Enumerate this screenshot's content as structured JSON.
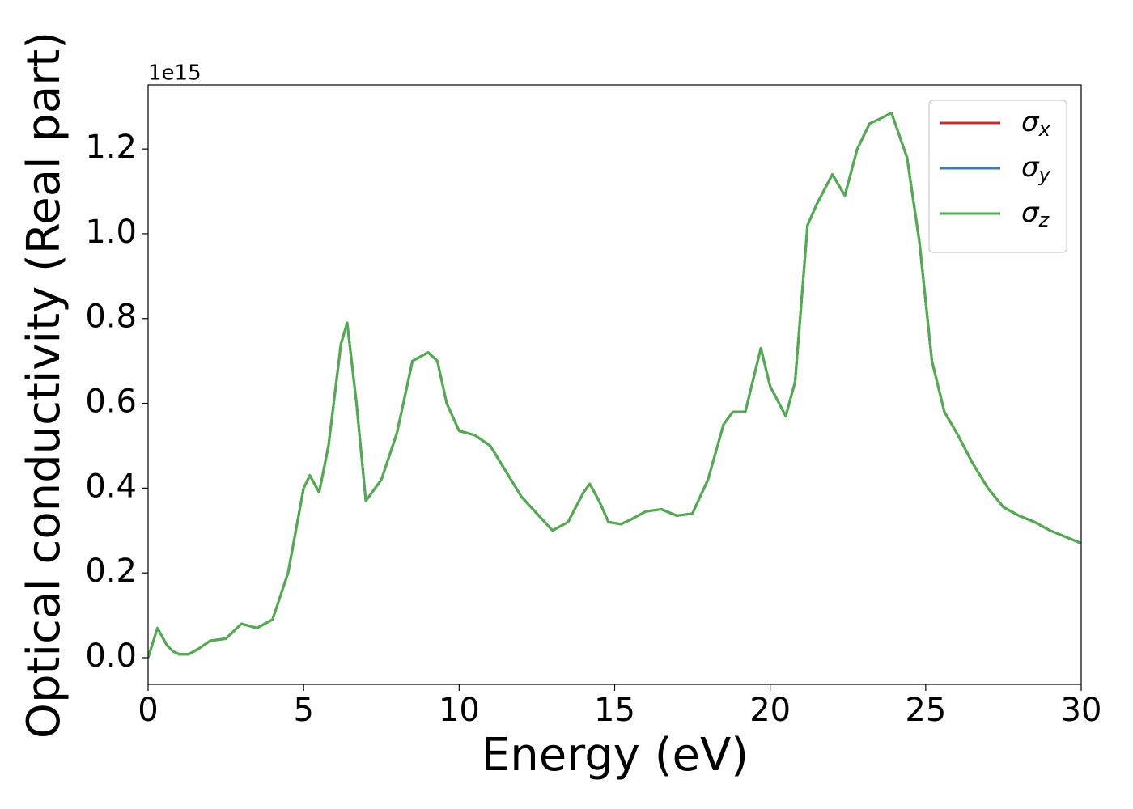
{
  "chart_data": {
    "type": "line",
    "xlabel": "Energy (eV)",
    "ylabel": "Optical conductivity (Real part)",
    "y_offset_label": "1e15",
    "x": [
      0,
      0.3,
      0.6,
      0.8,
      1.0,
      1.3,
      1.6,
      2.0,
      2.5,
      3.0,
      3.5,
      4.0,
      4.5,
      5.0,
      5.2,
      5.5,
      5.8,
      6.2,
      6.4,
      6.7,
      7.0,
      7.5,
      8.0,
      8.5,
      9.0,
      9.3,
      9.6,
      10.0,
      10.5,
      11.0,
      11.5,
      12.0,
      12.5,
      13.0,
      13.5,
      14.0,
      14.2,
      14.5,
      14.8,
      15.2,
      15.5,
      16.0,
      16.5,
      17.0,
      17.5,
      18.0,
      18.5,
      18.8,
      19.2,
      19.7,
      20.0,
      20.5,
      20.8,
      21.2,
      21.5,
      22.0,
      22.4,
      22.8,
      23.2,
      23.5,
      23.9,
      24.4,
      24.8,
      25.2,
      25.6,
      26.0,
      26.5,
      27.0,
      27.5,
      28.0,
      28.5,
      29.0,
      29.5,
      30.0
    ],
    "series": [
      {
        "name": "σx",
        "color": "#d62728",
        "values": [
          0.0,
          0.07,
          0.03,
          0.015,
          0.008,
          0.008,
          0.02,
          0.04,
          0.045,
          0.08,
          0.07,
          0.09,
          0.2,
          0.4,
          0.43,
          0.39,
          0.5,
          0.74,
          0.79,
          0.6,
          0.37,
          0.42,
          0.53,
          0.7,
          0.72,
          0.7,
          0.6,
          0.535,
          0.525,
          0.5,
          0.44,
          0.38,
          0.34,
          0.3,
          0.32,
          0.39,
          0.41,
          0.37,
          0.32,
          0.315,
          0.325,
          0.345,
          0.35,
          0.335,
          0.34,
          0.42,
          0.55,
          0.58,
          0.58,
          0.73,
          0.64,
          0.57,
          0.65,
          1.02,
          1.07,
          1.14,
          1.09,
          1.2,
          1.26,
          1.27,
          1.285,
          1.18,
          0.98,
          0.7,
          0.58,
          0.53,
          0.46,
          0.4,
          0.355,
          0.335,
          0.32,
          0.3,
          0.285,
          0.27
        ]
      },
      {
        "name": "σy",
        "color": "#3b7fb6",
        "values": [
          0.0,
          0.07,
          0.03,
          0.015,
          0.008,
          0.008,
          0.02,
          0.04,
          0.045,
          0.08,
          0.07,
          0.09,
          0.2,
          0.4,
          0.43,
          0.39,
          0.5,
          0.74,
          0.79,
          0.6,
          0.37,
          0.42,
          0.53,
          0.7,
          0.72,
          0.7,
          0.6,
          0.535,
          0.525,
          0.5,
          0.44,
          0.38,
          0.34,
          0.3,
          0.32,
          0.39,
          0.41,
          0.37,
          0.32,
          0.315,
          0.325,
          0.345,
          0.35,
          0.335,
          0.34,
          0.42,
          0.55,
          0.58,
          0.58,
          0.73,
          0.64,
          0.57,
          0.65,
          1.02,
          1.07,
          1.14,
          1.09,
          1.2,
          1.26,
          1.27,
          1.285,
          1.18,
          0.98,
          0.7,
          0.58,
          0.53,
          0.46,
          0.4,
          0.355,
          0.335,
          0.32,
          0.3,
          0.285,
          0.27
        ]
      },
      {
        "name": "σz",
        "color": "#4daf4a",
        "values": [
          0.0,
          0.07,
          0.03,
          0.015,
          0.008,
          0.008,
          0.02,
          0.04,
          0.045,
          0.08,
          0.07,
          0.09,
          0.2,
          0.4,
          0.43,
          0.39,
          0.5,
          0.74,
          0.79,
          0.6,
          0.37,
          0.42,
          0.53,
          0.7,
          0.72,
          0.7,
          0.6,
          0.535,
          0.525,
          0.5,
          0.44,
          0.38,
          0.34,
          0.3,
          0.32,
          0.39,
          0.41,
          0.37,
          0.32,
          0.315,
          0.325,
          0.345,
          0.35,
          0.335,
          0.34,
          0.42,
          0.55,
          0.58,
          0.58,
          0.73,
          0.64,
          0.57,
          0.65,
          1.02,
          1.07,
          1.14,
          1.09,
          1.2,
          1.26,
          1.27,
          1.285,
          1.18,
          0.98,
          0.7,
          0.58,
          0.53,
          0.46,
          0.4,
          0.355,
          0.335,
          0.32,
          0.3,
          0.285,
          0.27
        ]
      }
    ],
    "xlim": [
      0,
      30
    ],
    "xticks": [
      0,
      5,
      10,
      15,
      20,
      25,
      30
    ],
    "ylim": [
      -0.063,
      1.351
    ],
    "yticks": [
      {
        "value": 0,
        "label": "0.0"
      },
      0.2,
      0.4,
      0.6,
      0.8,
      {
        "value": 1,
        "label": "1.0"
      },
      1.2
    ],
    "grid": false,
    "legend": "upper right"
  }
}
